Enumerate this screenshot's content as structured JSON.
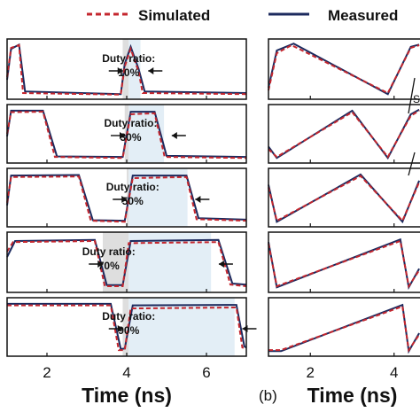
{
  "legend": {
    "simulated_label": "Simulated",
    "measured_label": "Measured"
  },
  "colors": {
    "simulated": "#c4262e",
    "measured": "#1c2a5e",
    "shade_low": "#dedede",
    "shade_high": "#e3eef6"
  },
  "panel_b_label": "(b)",
  "panel_b_side_text": "S",
  "chart_data": [
    {
      "type": "line",
      "panel": "a",
      "xlabel": "Time (ns)",
      "ylabel": "",
      "xlim": [
        1,
        7
      ],
      "xticks": [
        2,
        4,
        6
      ],
      "grid": false,
      "legend_position": "top",
      "series_names": [
        "Simulated",
        "Measured"
      ],
      "subplots": [
        {
          "annotation": [
            "Duty ratio:",
            "10%"
          ],
          "period_start": 3.9,
          "duty_ratio": 0.1,
          "simulated": [
            [
              1.0,
              0.35
            ],
            [
              1.1,
              0.9
            ],
            [
              1.3,
              0.95
            ],
            [
              1.4,
              0.05
            ],
            [
              3.85,
              0.02
            ],
            [
              3.95,
              0.55
            ],
            [
              4.1,
              0.88
            ],
            [
              4.3,
              0.45
            ],
            [
              4.4,
              0.05
            ],
            [
              7.0,
              0.03
            ]
          ],
          "measured": [
            [
              1.0,
              0.3
            ],
            [
              1.1,
              0.88
            ],
            [
              1.3,
              0.96
            ],
            [
              1.45,
              0.08
            ],
            [
              3.85,
              0.03
            ],
            [
              3.95,
              0.6
            ],
            [
              4.1,
              0.92
            ],
            [
              4.3,
              0.5
            ],
            [
              4.45,
              0.08
            ],
            [
              7.0,
              0.05
            ]
          ]
        },
        {
          "annotation": [
            "Duty ratio:",
            "30%"
          ],
          "period_start": 3.95,
          "duty_ratio": 0.3,
          "simulated": [
            [
              1.0,
              0.5
            ],
            [
              1.1,
              0.92
            ],
            [
              1.9,
              0.93
            ],
            [
              2.2,
              0.05
            ],
            [
              3.9,
              0.03
            ],
            [
              4.1,
              0.88
            ],
            [
              4.7,
              0.9
            ],
            [
              4.95,
              0.05
            ],
            [
              7.0,
              0.03
            ]
          ],
          "measured": [
            [
              1.0,
              0.45
            ],
            [
              1.1,
              0.95
            ],
            [
              1.9,
              0.95
            ],
            [
              2.25,
              0.06
            ],
            [
              3.9,
              0.05
            ],
            [
              4.1,
              0.93
            ],
            [
              4.7,
              0.93
            ],
            [
              5.0,
              0.07
            ],
            [
              7.0,
              0.05
            ]
          ]
        },
        {
          "annotation": [
            "Duty ratio:",
            "50%"
          ],
          "period_start": 4.0,
          "duty_ratio": 0.5,
          "simulated": [
            [
              1.0,
              0.4
            ],
            [
              1.1,
              0.9
            ],
            [
              2.8,
              0.91
            ],
            [
              3.1,
              0.05
            ],
            [
              3.95,
              0.03
            ],
            [
              4.15,
              0.88
            ],
            [
              5.5,
              0.9
            ],
            [
              5.75,
              0.08
            ],
            [
              7.0,
              0.05
            ]
          ],
          "measured": [
            [
              1.0,
              0.35
            ],
            [
              1.1,
              0.93
            ],
            [
              2.8,
              0.94
            ],
            [
              3.15,
              0.06
            ],
            [
              3.95,
              0.05
            ],
            [
              4.15,
              0.93
            ],
            [
              5.5,
              0.93
            ],
            [
              5.8,
              0.1
            ],
            [
              7.0,
              0.07
            ]
          ]
        },
        {
          "annotation": [
            "Duty ratio:",
            "70%"
          ],
          "period_start": 3.4,
          "duty_ratio": 0.7,
          "simulated": [
            [
              1.0,
              0.7
            ],
            [
              1.15,
              0.88
            ],
            [
              3.2,
              0.9
            ],
            [
              3.45,
              0.05
            ],
            [
              3.9,
              0.05
            ],
            [
              4.05,
              0.86
            ],
            [
              6.3,
              0.88
            ],
            [
              6.6,
              0.08
            ],
            [
              7.0,
              0.05
            ]
          ],
          "measured": [
            [
              1.0,
              0.6
            ],
            [
              1.2,
              0.9
            ],
            [
              3.2,
              0.92
            ],
            [
              3.5,
              0.07
            ],
            [
              3.9,
              0.07
            ],
            [
              4.1,
              0.9
            ],
            [
              6.3,
              0.92
            ],
            [
              6.65,
              0.1
            ],
            [
              7.0,
              0.08
            ]
          ]
        },
        {
          "annotation": [
            "Duty ratio:",
            "90%"
          ],
          "period_start": 3.9,
          "duty_ratio": 0.9,
          "simulated": [
            [
              1.0,
              0.92
            ],
            [
              3.6,
              0.92
            ],
            [
              3.8,
              0.05
            ],
            [
              3.95,
              0.05
            ],
            [
              4.1,
              0.86
            ],
            [
              6.75,
              0.88
            ],
            [
              6.9,
              0.1
            ],
            [
              7.0,
              0.08
            ]
          ],
          "measured": [
            [
              1.0,
              0.95
            ],
            [
              3.6,
              0.95
            ],
            [
              3.85,
              0.07
            ],
            [
              3.95,
              0.08
            ],
            [
              4.15,
              0.92
            ],
            [
              6.75,
              0.93
            ],
            [
              6.95,
              0.12
            ],
            [
              7.0,
              0.1
            ]
          ]
        }
      ]
    },
    {
      "type": "line",
      "panel": "b",
      "xlabel": "Time (ns)",
      "ylabel": "",
      "xlim": [
        1,
        5
      ],
      "xticks": [
        2,
        4
      ],
      "grid": false,
      "subplots": [
        {
          "simulated": [
            [
              1.0,
              0.1
            ],
            [
              1.2,
              0.8
            ],
            [
              1.55,
              0.95
            ],
            [
              3.85,
              0.05
            ],
            [
              4.4,
              0.9
            ],
            [
              4.6,
              0.95
            ]
          ],
          "measured": [
            [
              1.0,
              0.15
            ],
            [
              1.2,
              0.85
            ],
            [
              1.6,
              0.98
            ],
            [
              3.85,
              0.03
            ],
            [
              4.4,
              0.92
            ],
            [
              4.6,
              0.96
            ]
          ]
        },
        {
          "simulated": [
            [
              1.0,
              0.2
            ],
            [
              1.2,
              0.05
            ],
            [
              3.0,
              0.92
            ],
            [
              3.85,
              0.05
            ],
            [
              4.4,
              0.85
            ],
            [
              4.6,
              0.95
            ]
          ],
          "measured": [
            [
              1.0,
              0.25
            ],
            [
              1.2,
              0.03
            ],
            [
              3.0,
              0.95
            ],
            [
              3.85,
              0.03
            ],
            [
              4.4,
              0.88
            ],
            [
              4.6,
              0.97
            ]
          ]
        },
        {
          "simulated": [
            [
              1.0,
              0.7
            ],
            [
              1.2,
              0.05
            ],
            [
              3.2,
              0.92
            ],
            [
              4.2,
              0.05
            ],
            [
              4.6,
              0.8
            ]
          ],
          "measured": [
            [
              1.0,
              0.75
            ],
            [
              1.2,
              0.03
            ],
            [
              3.2,
              0.95
            ],
            [
              4.2,
              0.03
            ],
            [
              4.6,
              0.83
            ]
          ]
        },
        {
          "simulated": [
            [
              1.0,
              0.85
            ],
            [
              1.2,
              0.05
            ],
            [
              4.15,
              0.9
            ],
            [
              4.35,
              0.05
            ],
            [
              4.6,
              0.35
            ]
          ],
          "measured": [
            [
              1.0,
              0.88
            ],
            [
              1.2,
              0.03
            ],
            [
              4.15,
              0.93
            ],
            [
              4.35,
              0.03
            ],
            [
              4.6,
              0.38
            ]
          ]
        },
        {
          "simulated": [
            [
              1.0,
              0.05
            ],
            [
              1.3,
              0.05
            ],
            [
              4.2,
              0.9
            ],
            [
              4.35,
              0.05
            ],
            [
              4.6,
              0.35
            ]
          ],
          "measured": [
            [
              1.0,
              0.03
            ],
            [
              1.3,
              0.03
            ],
            [
              4.2,
              0.93
            ],
            [
              4.35,
              0.03
            ],
            [
              4.6,
              0.38
            ]
          ]
        }
      ]
    }
  ]
}
